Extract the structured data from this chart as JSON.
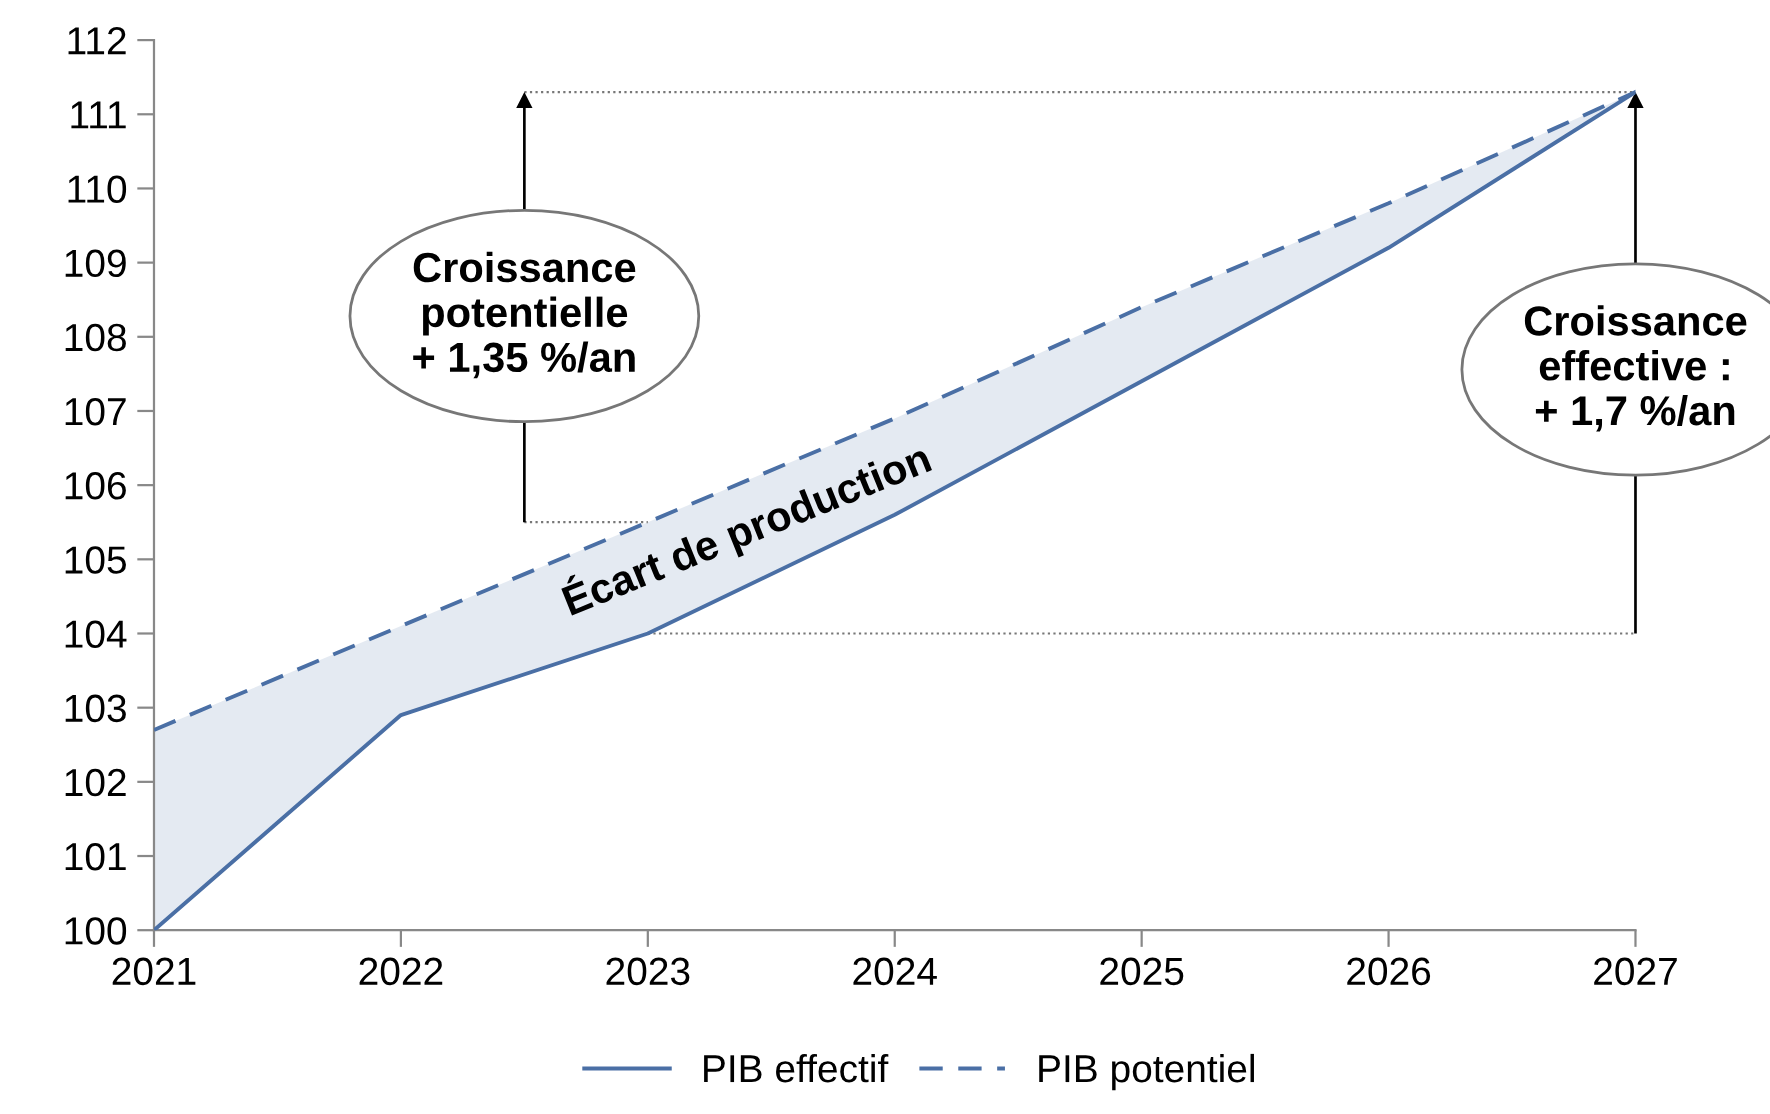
{
  "chart_data": {
    "type": "line",
    "x": [
      2021,
      2022,
      2023,
      2024,
      2025,
      2026,
      2027
    ],
    "series": [
      {
        "name": "PIB effectif",
        "color": "#4a6fa5",
        "line_style": "solid",
        "values": [
          100,
          102.9,
          104.0,
          105.6,
          107.4,
          109.2,
          111.3
        ]
      },
      {
        "name": "PIB potentiel",
        "color": "#4a6fa5",
        "line_style": "dashed",
        "values": [
          102.7,
          104.1,
          105.5,
          106.9,
          108.4,
          109.8,
          111.3
        ],
        "lower": [
          100,
          102.9,
          104.0,
          105.6,
          107.4,
          109.2,
          111.3
        ],
        "upper": [
          102.7,
          104.1,
          105.5,
          106.9,
          108.4,
          109.8,
          111.3
        ]
      }
    ],
    "xlim": [
      2021,
      2027
    ],
    "xticks": [
      2021,
      2022,
      2023,
      2024,
      2025,
      2026,
      2027
    ],
    "ylim": [
      100,
      112
    ],
    "yticks": [
      100,
      101,
      102,
      103,
      104,
      105,
      106,
      107,
      108,
      109,
      110,
      111,
      112
    ],
    "grid": false,
    "legend": "bottom",
    "marker": "none",
    "ref_lines": [
      {
        "axis": "y",
        "value": 111.3,
        "color": "#777777",
        "line_style": "dotted"
      },
      {
        "axis": "y",
        "value": 105.5,
        "color": "#777777",
        "line_style": "dotted"
      },
      {
        "axis": "y",
        "value": 104.0,
        "color": "#777777",
        "line_style": "dotted"
      }
    ],
    "annotations": [
      "Croissance\npotentielle\n+ 1,35 %/an",
      "Croissance\neffective :\n+ 1,7 %/an",
      "Écart de production"
    ]
  }
}
